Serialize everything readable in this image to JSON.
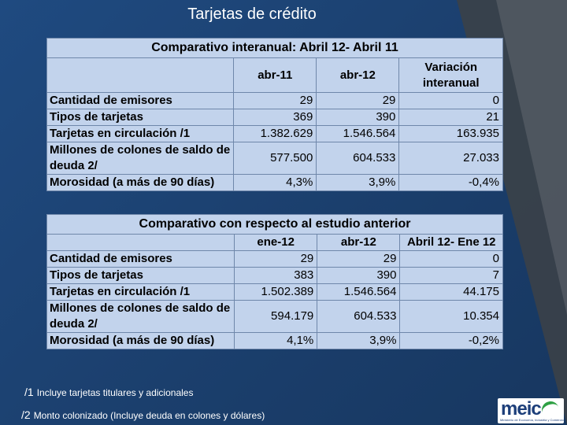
{
  "slide": {
    "title": "Tarjetas de crédito"
  },
  "table1": {
    "banner": "Comparativo interanual: Abril 12- Abril 11",
    "headers": [
      "abr-11",
      "abr-12",
      "Variación\ninteranual"
    ],
    "rows": [
      {
        "label": "Cantidad de emisores",
        "values": [
          "29",
          "29",
          "0"
        ]
      },
      {
        "label": "Tipos de tarjetas",
        "values": [
          "369",
          "390",
          "21"
        ]
      },
      {
        "label": "Tarjetas en circulación  /1",
        "values": [
          "1.382.629",
          "1.546.564",
          "163.935"
        ]
      },
      {
        "label": "Millones de colones de saldo de deuda 2/",
        "values": [
          "577.500",
          "604.533",
          "27.033"
        ]
      },
      {
        "label": "Morosidad (a más de 90 días)",
        "values": [
          "4,3%",
          "3,9%",
          "-0,4%"
        ]
      }
    ]
  },
  "table2": {
    "banner": "Comparativo con respecto al estudio anterior",
    "headers": [
      "ene-12",
      "abr-12",
      "Abril 12- Ene 12"
    ],
    "rows": [
      {
        "label": "Cantidad de emisores",
        "values": [
          "29",
          "29",
          "0"
        ]
      },
      {
        "label": "Tipos de tarjetas",
        "values": [
          "383",
          "390",
          "7"
        ]
      },
      {
        "label": "Tarjetas en circulación  /1",
        "values": [
          "1.502.389",
          "1.546.564",
          "44.175"
        ]
      },
      {
        "label": "Millones de colones de saldo de deuda 2/",
        "values": [
          "594.179",
          "604.533",
          "10.354"
        ]
      },
      {
        "label": "Morosidad (a más de 90 días)",
        "values": [
          "4,1%",
          "3,9%",
          "-0,2%"
        ]
      }
    ]
  },
  "footnotes": [
    {
      "mark": "/1",
      "text": "Incluye tarjetas  titulares y adicionales"
    },
    {
      "mark": "/2",
      "text": "Monto colonizado (Incluye deuda en colones y dólares)"
    }
  ],
  "logo": {
    "word": "meic",
    "tagline": "Ministerio de Economía, Industria y Comercio"
  },
  "colors": {
    "background": "#1b3f6d",
    "table_fill": "#c2d3ec",
    "logo_blue": "#1d3f7a",
    "logo_green": "#2ea043"
  }
}
